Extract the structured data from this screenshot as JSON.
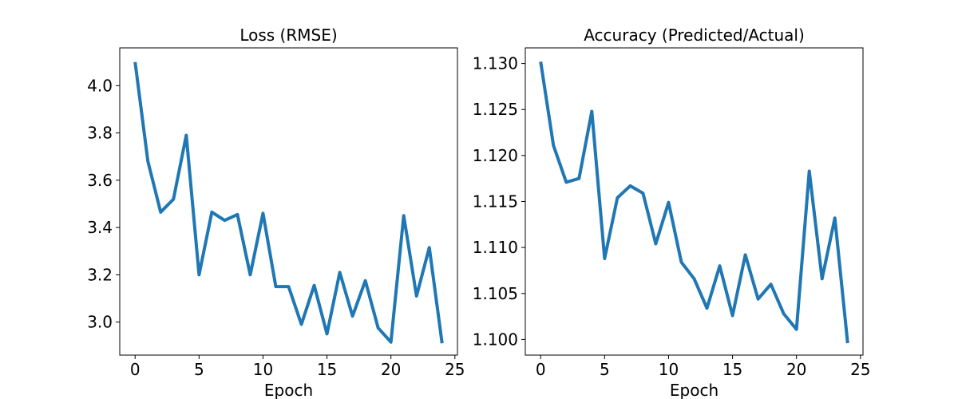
{
  "chart_data": [
    {
      "type": "line",
      "title": "Loss (RMSE)",
      "xlabel": "Epoch",
      "ylabel": "",
      "xlim": [
        -1.2,
        25.2
      ],
      "ylim": [
        2.86,
        4.16
      ],
      "xticks": [
        0,
        5,
        10,
        15,
        20,
        25
      ],
      "yticks": [
        3.0,
        3.2,
        3.4,
        3.6,
        3.8,
        4.0
      ],
      "tick_decimals": 1,
      "grid": false,
      "color": "#1f77b4",
      "series": [
        {
          "x": [
            0,
            1,
            2,
            3,
            4,
            5,
            6,
            7,
            8,
            9,
            10,
            11,
            12,
            13,
            14,
            15,
            16,
            17,
            18,
            19,
            20,
            21,
            22,
            23,
            24
          ],
          "values": [
            4.1,
            3.68,
            3.465,
            3.52,
            3.79,
            3.2,
            3.465,
            3.43,
            3.455,
            3.2,
            3.46,
            3.15,
            3.15,
            2.99,
            3.155,
            2.95,
            3.21,
            3.025,
            3.175,
            2.975,
            2.915,
            3.45,
            3.11,
            3.315,
            2.91
          ]
        }
      ]
    },
    {
      "type": "line",
      "title": "Accuracy (Predicted/Actual)",
      "xlabel": "Epoch",
      "ylabel": "",
      "xlim": [
        -1.2,
        25.2
      ],
      "ylim": [
        1.0983,
        1.1317
      ],
      "xticks": [
        0,
        5,
        10,
        15,
        20,
        25
      ],
      "yticks": [
        1.1,
        1.105,
        1.11,
        1.115,
        1.12,
        1.125,
        1.13
      ],
      "tick_decimals": 3,
      "grid": false,
      "color": "#1f77b4",
      "series": [
        {
          "x": [
            0,
            1,
            2,
            3,
            4,
            5,
            6,
            7,
            8,
            9,
            10,
            11,
            12,
            13,
            14,
            15,
            16,
            17,
            18,
            19,
            20,
            21,
            22,
            23,
            24
          ],
          "values": [
            1.1302,
            1.1211,
            1.1171,
            1.1175,
            1.1248,
            1.1088,
            1.1154,
            1.1167,
            1.1159,
            1.1104,
            1.1149,
            1.1084,
            1.1066,
            1.1034,
            1.108,
            1.1026,
            1.1092,
            1.1044,
            1.106,
            1.1028,
            1.1011,
            1.1183,
            1.1066,
            1.1132,
            1.0996
          ]
        }
      ]
    }
  ]
}
